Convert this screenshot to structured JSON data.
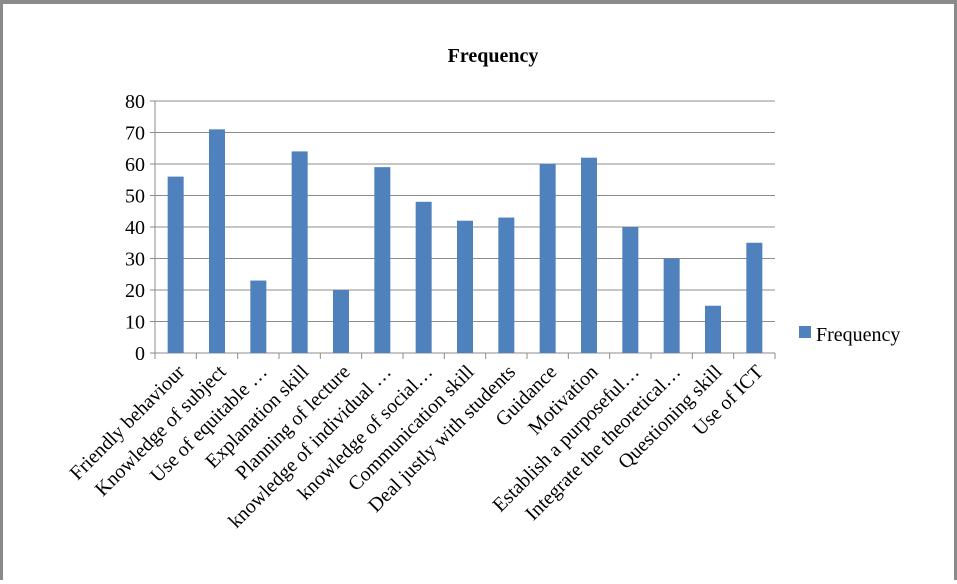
{
  "chart_data": {
    "type": "bar",
    "title": "Frequency",
    "xlabel": "",
    "ylabel": "",
    "ylim": [
      0,
      80
    ],
    "yticks": [
      0,
      10,
      20,
      30,
      40,
      50,
      60,
      70,
      80
    ],
    "grid": true,
    "legend_position": "right",
    "bar_color": "#4f81bd",
    "categories": [
      "Friendly behaviour",
      "Knowledge of subject",
      "Use of equitable …",
      "Explanation skill",
      "Planning of lecture",
      "knowledge of individual …",
      "knowledge of social…",
      "Communication skill",
      "Deal justly with students",
      "Guidance",
      "Motivation",
      "Establish a purposeful…",
      "Integrate the theoretical…",
      "Questioning skill",
      "Use of ICT"
    ],
    "series": [
      {
        "name": "Frequency",
        "values": [
          56,
          71,
          23,
          64,
          20,
          59,
          48,
          42,
          43,
          60,
          62,
          40,
          30,
          15,
          35
        ]
      }
    ]
  }
}
